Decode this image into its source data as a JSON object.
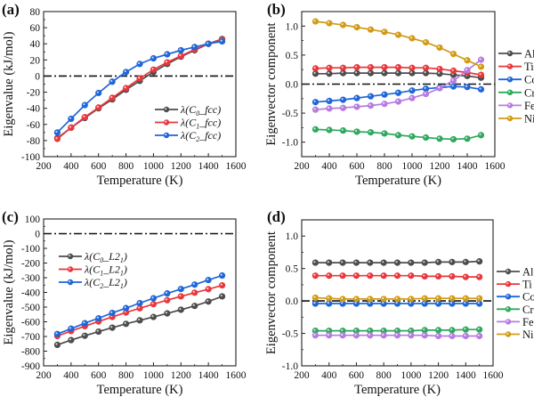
{
  "figure": {
    "panels": [
      "(a)",
      "(b)",
      "(c)",
      "(d)"
    ]
  },
  "chart_data": [
    {
      "panel_label": "(a)",
      "type": "line",
      "title": "",
      "xlabel": "Temperature (K)",
      "ylabel": "Eigenvalue (kJ/mol)",
      "xlim": [
        200,
        1600
      ],
      "ylim": [
        -100,
        80
      ],
      "xticks": [
        200,
        400,
        600,
        800,
        1000,
        1200,
        1400,
        1600
      ],
      "yticks": [
        -100,
        -80,
        -60,
        -40,
        -20,
        0,
        20,
        40,
        60,
        80
      ],
      "x": [
        300,
        400,
        500,
        600,
        700,
        800,
        900,
        1000,
        1100,
        1200,
        1300,
        1400,
        1500
      ],
      "reference_line": {
        "y": 0,
        "style": "dash-dot"
      },
      "legend": {
        "placement": "lower-right",
        "inside": true
      },
      "grid": false,
      "series": [
        {
          "name": "λ(C0_fcc)",
          "label_base": "λ(",
          "label_sym": "C",
          "label_sub": "0",
          "label_rest": "_fcc)",
          "color": "#4d4d4d",
          "values": [
            -77,
            -64,
            -52,
            -40,
            -29,
            -17,
            -6,
            5,
            15,
            24,
            32,
            40,
            46
          ]
        },
        {
          "name": "λ(C1_fcc)",
          "label_base": "λ(",
          "label_sym": "C",
          "label_sub": "1",
          "label_rest": "_fcc)",
          "color": "#e8383d",
          "values": [
            -78,
            -64,
            -51,
            -39,
            -27,
            -15,
            -3,
            8,
            17,
            25,
            33,
            40,
            45
          ]
        },
        {
          "name": "λ(C2_fcc)",
          "label_base": "λ(",
          "label_sym": "C",
          "label_sub": "2",
          "label_rest": "_fcc)",
          "color": "#1f66d8",
          "values": [
            -70,
            -53,
            -36,
            -21,
            -7,
            5,
            15,
            22,
            27,
            32,
            36,
            40,
            43
          ]
        }
      ]
    },
    {
      "panel_label": "(b)",
      "type": "line",
      "title": "",
      "xlabel": "Temperature (K)",
      "ylabel": "Eigenvector component",
      "xlim": [
        200,
        1600
      ],
      "ylim": [
        -1.25,
        1.25
      ],
      "xticks": [
        200,
        400,
        600,
        800,
        1000,
        1200,
        1400,
        1600
      ],
      "yticks": [
        -1.0,
        -0.5,
        0.0,
        0.5,
        1.0
      ],
      "ytick_labels": [
        "-1.0",
        "-0.5",
        "0.0",
        "0.5",
        "1.0"
      ],
      "x": [
        300,
        400,
        500,
        600,
        700,
        800,
        900,
        1000,
        1100,
        1200,
        1300,
        1400,
        1500
      ],
      "reference_line": {
        "y": 0,
        "style": "dash-dot"
      },
      "legend": {
        "placement": "right-outside",
        "inside": false
      },
      "grid": false,
      "series": [
        {
          "name": "Al",
          "color": "#4d4d4d",
          "values": [
            0.18,
            0.18,
            0.19,
            0.19,
            0.19,
            0.19,
            0.19,
            0.19,
            0.19,
            0.18,
            0.16,
            0.14,
            0.11
          ]
        },
        {
          "name": "Ti",
          "color": "#e8383d",
          "values": [
            0.27,
            0.28,
            0.28,
            0.29,
            0.29,
            0.29,
            0.29,
            0.28,
            0.28,
            0.26,
            0.23,
            0.2,
            0.16
          ]
        },
        {
          "name": "Co",
          "color": "#1f66d8",
          "values": [
            -0.31,
            -0.29,
            -0.27,
            -0.24,
            -0.21,
            -0.18,
            -0.15,
            -0.11,
            -0.08,
            -0.06,
            -0.04,
            -0.05,
            -0.09
          ]
        },
        {
          "name": "Cr",
          "color": "#2fa85e",
          "values": [
            -0.78,
            -0.79,
            -0.8,
            -0.82,
            -0.83,
            -0.85,
            -0.88,
            -0.9,
            -0.92,
            -0.94,
            -0.95,
            -0.94,
            -0.88
          ]
        },
        {
          "name": "Fe",
          "color": "#b77be0",
          "values": [
            -0.44,
            -0.42,
            -0.41,
            -0.39,
            -0.37,
            -0.34,
            -0.3,
            -0.24,
            -0.17,
            -0.07,
            0.06,
            0.24,
            0.42
          ]
        },
        {
          "name": "Ni",
          "color": "#d19b16",
          "values": [
            1.08,
            1.05,
            1.02,
            0.98,
            0.94,
            0.9,
            0.85,
            0.79,
            0.72,
            0.63,
            0.52,
            0.41,
            0.3
          ]
        }
      ]
    },
    {
      "panel_label": "(c)",
      "type": "line",
      "title": "",
      "xlabel": "Temperature (K)",
      "ylabel": "Eigenvalue (kJ/mol)",
      "xlim": [
        200,
        1600
      ],
      "ylim": [
        -900,
        100
      ],
      "xticks": [
        200,
        400,
        600,
        800,
        1000,
        1200,
        1400,
        1600
      ],
      "yticks": [
        -900,
        -800,
        -700,
        -600,
        -500,
        -400,
        -300,
        -200,
        -100,
        0,
        100
      ],
      "x": [
        300,
        400,
        500,
        600,
        700,
        800,
        900,
        1000,
        1100,
        1200,
        1300,
        1400,
        1500
      ],
      "reference_line": {
        "y": 0,
        "style": "dash-dot"
      },
      "legend": {
        "placement": "upper-left",
        "inside": true
      },
      "grid": false,
      "series": [
        {
          "name": "λ(C0_L21)",
          "label_base": "λ(",
          "label_sym": "C",
          "label_sub": "0",
          "label_rest": "_L2",
          "label_sub2": "1",
          "label_end": ")",
          "color": "#4d4d4d",
          "values": [
            -757,
            -725,
            -695,
            -667,
            -640,
            -614,
            -590,
            -567,
            -543,
            -518,
            -492,
            -462,
            -427
          ]
        },
        {
          "name": "λ(C1_L21)",
          "label_base": "λ(",
          "label_sym": "C",
          "label_sub": "1",
          "label_rest": "_L2",
          "label_sub2": "1",
          "label_end": ")",
          "color": "#e8383d",
          "values": [
            -697,
            -663,
            -630,
            -598,
            -567,
            -537,
            -508,
            -480,
            -453,
            -427,
            -402,
            -378,
            -352
          ]
        },
        {
          "name": "λ(C2_L21)",
          "label_base": "λ(",
          "label_sym": "C",
          "label_sub": "2",
          "label_rest": "_L2",
          "label_sub2": "1",
          "label_end": ")",
          "color": "#1f66d8",
          "values": [
            -683,
            -647,
            -610,
            -576,
            -540,
            -507,
            -473,
            -440,
            -407,
            -377,
            -347,
            -316,
            -285
          ]
        }
      ]
    },
    {
      "panel_label": "(d)",
      "type": "line",
      "title": "",
      "xlabel": "Temperature (K)",
      "ylabel": "Eigenvector component",
      "xlim": [
        200,
        1600
      ],
      "ylim": [
        -1.0,
        1.25
      ],
      "xticks": [
        200,
        400,
        600,
        800,
        1000,
        1200,
        1400,
        1600
      ],
      "yticks": [
        -1.0,
        -0.5,
        0.0,
        0.5,
        1.0
      ],
      "ytick_labels": [
        "-1.0",
        "-0.5",
        "0.0",
        "0.5",
        "1.0"
      ],
      "x": [
        300,
        400,
        500,
        600,
        700,
        800,
        900,
        1000,
        1100,
        1200,
        1300,
        1400,
        1500
      ],
      "reference_line": {
        "y": 0,
        "style": "dash-dot"
      },
      "legend": {
        "placement": "right-outside",
        "inside": false
      },
      "grid": false,
      "series": [
        {
          "name": "Al",
          "color": "#4d4d4d",
          "values": [
            0.59,
            0.59,
            0.59,
            0.59,
            0.59,
            0.59,
            0.59,
            0.59,
            0.59,
            0.6,
            0.6,
            0.6,
            0.61
          ]
        },
        {
          "name": "Ti",
          "color": "#e8383d",
          "values": [
            0.39,
            0.39,
            0.39,
            0.39,
            0.39,
            0.39,
            0.39,
            0.39,
            0.38,
            0.38,
            0.38,
            0.37,
            0.37
          ]
        },
        {
          "name": "Co",
          "color": "#1f66d8",
          "values": [
            -0.04,
            -0.04,
            -0.04,
            -0.04,
            -0.04,
            -0.04,
            -0.04,
            -0.04,
            -0.04,
            -0.04,
            -0.04,
            -0.04,
            -0.04
          ]
        },
        {
          "name": "Cr",
          "color": "#2fa85e",
          "values": [
            -0.46,
            -0.46,
            -0.46,
            -0.46,
            -0.46,
            -0.46,
            -0.46,
            -0.46,
            -0.45,
            -0.45,
            -0.45,
            -0.44,
            -0.44
          ]
        },
        {
          "name": "Fe",
          "color": "#b77be0",
          "values": [
            -0.53,
            -0.53,
            -0.53,
            -0.53,
            -0.53,
            -0.53,
            -0.53,
            -0.53,
            -0.53,
            -0.54,
            -0.54,
            -0.54,
            -0.54
          ]
        },
        {
          "name": "Ni",
          "color": "#d19b16",
          "values": [
            0.05,
            0.04,
            0.03,
            0.03,
            0.03,
            0.03,
            0.03,
            0.03,
            0.04,
            0.04,
            0.04,
            0.04,
            0.04
          ]
        }
      ]
    }
  ]
}
